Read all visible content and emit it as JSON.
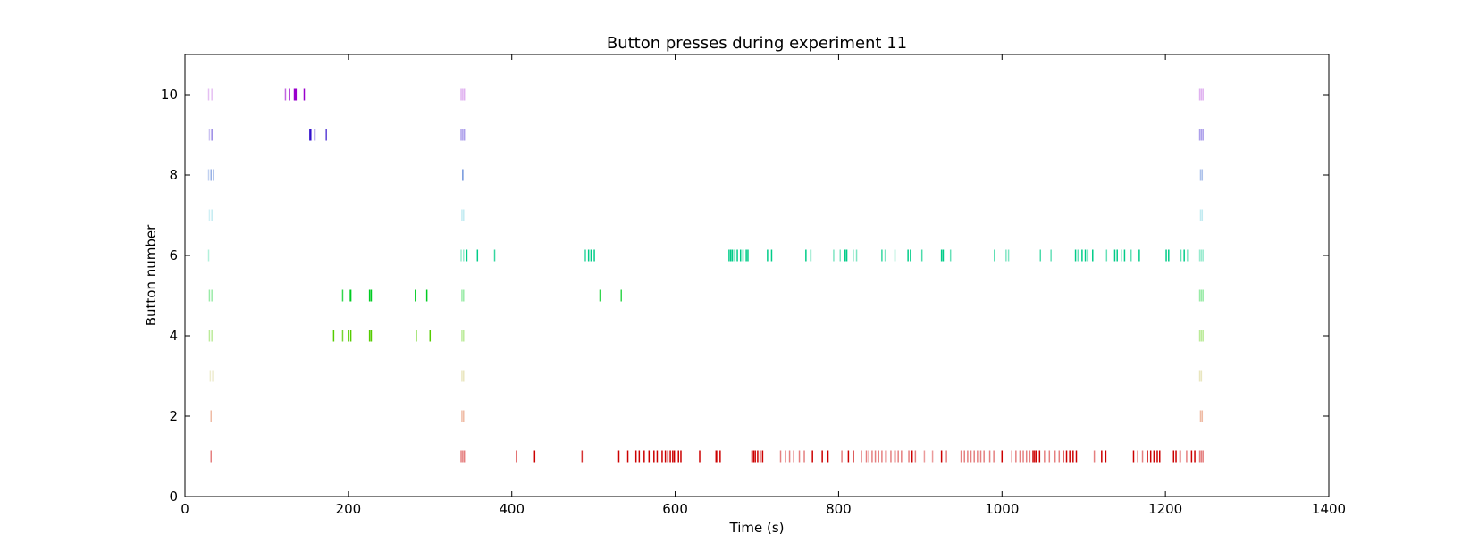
{
  "chart_data": {
    "type": "event-raster",
    "title": "Button presses during experiment 11",
    "xlabel": "Time (s)",
    "ylabel": "Button number",
    "xlim": [
      0,
      1400
    ],
    "ylim": [
      0,
      11
    ],
    "xticks": [
      0,
      200,
      400,
      600,
      800,
      1000,
      1200,
      1400
    ],
    "yticks": [
      0,
      2,
      4,
      6,
      8,
      10
    ],
    "grid": false,
    "colors": {
      "1": "#cc0000",
      "2": "#e0784a",
      "3": "#c8c060",
      "4": "#55cc00",
      "5": "#00cc22",
      "6": "#00cc88",
      "7": "#66ccdd",
      "8": "#3366cc",
      "9": "#3311cc",
      "10": "#9900cc"
    },
    "series": [
      {
        "button": 10,
        "events": [
          {
            "t": 29,
            "a": 0.25
          },
          {
            "t": 33,
            "a": 0.25
          },
          {
            "t": 123,
            "a": 0.6
          },
          {
            "t": 128,
            "a": 1
          },
          {
            "t": 134,
            "a": 1
          },
          {
            "t": 135,
            "a": 1
          },
          {
            "t": 136,
            "a": 1
          },
          {
            "t": 146,
            "a": 1
          },
          {
            "t": 338,
            "a": 0.3
          },
          {
            "t": 340,
            "a": 0.3
          },
          {
            "t": 342,
            "a": 0.3
          },
          {
            "t": 1242,
            "a": 0.3
          },
          {
            "t": 1244,
            "a": 0.3
          },
          {
            "t": 1246,
            "a": 0.3
          }
        ]
      },
      {
        "button": 9,
        "events": [
          {
            "t": 30,
            "a": 0.25
          },
          {
            "t": 33,
            "a": 0.5
          },
          {
            "t": 153,
            "a": 1
          },
          {
            "t": 154,
            "a": 1
          },
          {
            "t": 159,
            "a": 0.8
          },
          {
            "t": 173,
            "a": 0.8
          },
          {
            "t": 338,
            "a": 0.4
          },
          {
            "t": 340,
            "a": 0.4
          },
          {
            "t": 342,
            "a": 0.4
          },
          {
            "t": 1242,
            "a": 0.4
          },
          {
            "t": 1244,
            "a": 0.4
          },
          {
            "t": 1246,
            "a": 0.4
          }
        ]
      },
      {
        "button": 8,
        "events": [
          {
            "t": 29,
            "a": 0.3
          },
          {
            "t": 32,
            "a": 0.5
          },
          {
            "t": 35,
            "a": 0.5
          },
          {
            "t": 340,
            "a": 0.7
          },
          {
            "t": 1243,
            "a": 0.4
          },
          {
            "t": 1245,
            "a": 0.4
          }
        ]
      },
      {
        "button": 7,
        "events": [
          {
            "t": 30,
            "a": 0.3
          },
          {
            "t": 33,
            "a": 0.4
          },
          {
            "t": 339,
            "a": 0.4
          },
          {
            "t": 341,
            "a": 0.4
          },
          {
            "t": 1243,
            "a": 0.4
          },
          {
            "t": 1245,
            "a": 0.4
          }
        ]
      },
      {
        "button": 6,
        "events": [
          {
            "t": 29,
            "a": 0.3
          },
          {
            "t": 338,
            "a": 0.4
          },
          {
            "t": 341,
            "a": 0.4
          },
          {
            "t": 345,
            "a": 1
          },
          {
            "t": 358,
            "a": 1
          },
          {
            "t": 379,
            "a": 0.8
          },
          {
            "t": 490,
            "a": 0.8
          },
          {
            "t": 494,
            "a": 1
          },
          {
            "t": 497,
            "a": 1
          },
          {
            "t": 501,
            "a": 1
          },
          {
            "t": 666,
            "a": 1
          },
          {
            "t": 668,
            "a": 1
          },
          {
            "t": 670,
            "a": 1
          },
          {
            "t": 673,
            "a": 1
          },
          {
            "t": 676,
            "a": 1
          },
          {
            "t": 680,
            "a": 1
          },
          {
            "t": 683,
            "a": 1
          },
          {
            "t": 687,
            "a": 1
          },
          {
            "t": 689,
            "a": 1
          },
          {
            "t": 713,
            "a": 1
          },
          {
            "t": 718,
            "a": 1
          },
          {
            "t": 760,
            "a": 1
          },
          {
            "t": 766,
            "a": 0.8
          },
          {
            "t": 794,
            "a": 0.5
          },
          {
            "t": 802,
            "a": 0.5
          },
          {
            "t": 808,
            "a": 1
          },
          {
            "t": 810,
            "a": 1
          },
          {
            "t": 818,
            "a": 0.5
          },
          {
            "t": 822,
            "a": 0.5
          },
          {
            "t": 853,
            "a": 0.8
          },
          {
            "t": 857,
            "a": 0.5
          },
          {
            "t": 869,
            "a": 0.5
          },
          {
            "t": 885,
            "a": 1
          },
          {
            "t": 888,
            "a": 1
          },
          {
            "t": 902,
            "a": 0.7
          },
          {
            "t": 926,
            "a": 1
          },
          {
            "t": 928,
            "a": 1
          },
          {
            "t": 937,
            "a": 0.6
          },
          {
            "t": 991,
            "a": 0.9
          },
          {
            "t": 1005,
            "a": 0.5
          },
          {
            "t": 1008,
            "a": 0.5
          },
          {
            "t": 1047,
            "a": 0.7
          },
          {
            "t": 1060,
            "a": 0.6
          },
          {
            "t": 1090,
            "a": 1
          },
          {
            "t": 1093,
            "a": 0.6
          },
          {
            "t": 1098,
            "a": 1
          },
          {
            "t": 1102,
            "a": 1
          },
          {
            "t": 1105,
            "a": 1
          },
          {
            "t": 1111,
            "a": 1
          },
          {
            "t": 1128,
            "a": 0.6
          },
          {
            "t": 1138,
            "a": 1
          },
          {
            "t": 1141,
            "a": 1
          },
          {
            "t": 1146,
            "a": 0.6
          },
          {
            "t": 1150,
            "a": 1
          },
          {
            "t": 1158,
            "a": 0.6
          },
          {
            "t": 1168,
            "a": 1
          },
          {
            "t": 1201,
            "a": 1
          },
          {
            "t": 1204,
            "a": 1
          },
          {
            "t": 1219,
            "a": 0.6
          },
          {
            "t": 1223,
            "a": 1
          },
          {
            "t": 1227,
            "a": 0.5
          },
          {
            "t": 1242,
            "a": 0.4
          },
          {
            "t": 1244,
            "a": 0.4
          },
          {
            "t": 1246,
            "a": 0.4
          }
        ]
      },
      {
        "button": 5,
        "events": [
          {
            "t": 30,
            "a": 0.4
          },
          {
            "t": 33,
            "a": 0.4
          },
          {
            "t": 193,
            "a": 0.8
          },
          {
            "t": 201,
            "a": 1
          },
          {
            "t": 203,
            "a": 1
          },
          {
            "t": 226,
            "a": 1
          },
          {
            "t": 228,
            "a": 1
          },
          {
            "t": 282,
            "a": 1
          },
          {
            "t": 296,
            "a": 1
          },
          {
            "t": 339,
            "a": 0.4
          },
          {
            "t": 341,
            "a": 0.4
          },
          {
            "t": 508,
            "a": 0.8
          },
          {
            "t": 534,
            "a": 0.8
          },
          {
            "t": 1242,
            "a": 0.4
          },
          {
            "t": 1244,
            "a": 0.4
          },
          {
            "t": 1246,
            "a": 0.4
          }
        ]
      },
      {
        "button": 4,
        "events": [
          {
            "t": 30,
            "a": 0.4
          },
          {
            "t": 33,
            "a": 0.4
          },
          {
            "t": 182,
            "a": 1
          },
          {
            "t": 193,
            "a": 0.8
          },
          {
            "t": 200,
            "a": 1
          },
          {
            "t": 203,
            "a": 1
          },
          {
            "t": 226,
            "a": 1
          },
          {
            "t": 228,
            "a": 1
          },
          {
            "t": 283,
            "a": 1
          },
          {
            "t": 300,
            "a": 1
          },
          {
            "t": 339,
            "a": 0.4
          },
          {
            "t": 341,
            "a": 0.4
          },
          {
            "t": 1242,
            "a": 0.4
          },
          {
            "t": 1244,
            "a": 0.4
          },
          {
            "t": 1246,
            "a": 0.4
          }
        ]
      },
      {
        "button": 3,
        "events": [
          {
            "t": 31,
            "a": 0.3
          },
          {
            "t": 34,
            "a": 0.3
          },
          {
            "t": 339,
            "a": 0.4
          },
          {
            "t": 341,
            "a": 0.4
          },
          {
            "t": 1242,
            "a": 0.4
          },
          {
            "t": 1244,
            "a": 0.4
          }
        ]
      },
      {
        "button": 2,
        "events": [
          {
            "t": 32,
            "a": 0.5
          },
          {
            "t": 339,
            "a": 0.5
          },
          {
            "t": 341,
            "a": 0.5
          },
          {
            "t": 1243,
            "a": 0.5
          },
          {
            "t": 1245,
            "a": 0.5
          }
        ]
      },
      {
        "button": 1,
        "events": [
          {
            "t": 32,
            "a": 0.5
          },
          {
            "t": 338,
            "a": 0.5
          },
          {
            "t": 340,
            "a": 0.5
          },
          {
            "t": 342,
            "a": 0.5
          },
          {
            "t": 406,
            "a": 1
          },
          {
            "t": 428,
            "a": 1
          },
          {
            "t": 486,
            "a": 0.8
          },
          {
            "t": 531,
            "a": 1
          },
          {
            "t": 542,
            "a": 1
          },
          {
            "t": 552,
            "a": 1
          },
          {
            "t": 556,
            "a": 1
          },
          {
            "t": 562,
            "a": 1
          },
          {
            "t": 568,
            "a": 1
          },
          {
            "t": 574,
            "a": 1
          },
          {
            "t": 578,
            "a": 1
          },
          {
            "t": 584,
            "a": 1
          },
          {
            "t": 588,
            "a": 1
          },
          {
            "t": 591,
            "a": 1
          },
          {
            "t": 594,
            "a": 1
          },
          {
            "t": 597,
            "a": 1
          },
          {
            "t": 599,
            "a": 1
          },
          {
            "t": 604,
            "a": 1
          },
          {
            "t": 607,
            "a": 1
          },
          {
            "t": 630,
            "a": 1
          },
          {
            "t": 650,
            "a": 1
          },
          {
            "t": 652,
            "a": 1
          },
          {
            "t": 655,
            "a": 1
          },
          {
            "t": 694,
            "a": 1
          },
          {
            "t": 696,
            "a": 1
          },
          {
            "t": 698,
            "a": 1
          },
          {
            "t": 701,
            "a": 1
          },
          {
            "t": 704,
            "a": 1
          },
          {
            "t": 707,
            "a": 1
          },
          {
            "t": 729,
            "a": 0.5
          },
          {
            "t": 735,
            "a": 0.5
          },
          {
            "t": 740,
            "a": 0.5
          },
          {
            "t": 745,
            "a": 0.5
          },
          {
            "t": 752,
            "a": 0.5
          },
          {
            "t": 758,
            "a": 0.5
          },
          {
            "t": 768,
            "a": 1
          },
          {
            "t": 780,
            "a": 1
          },
          {
            "t": 787,
            "a": 1
          },
          {
            "t": 804,
            "a": 0.5
          },
          {
            "t": 812,
            "a": 1
          },
          {
            "t": 818,
            "a": 1
          },
          {
            "t": 828,
            "a": 0.5
          },
          {
            "t": 834,
            "a": 0.5
          },
          {
            "t": 837,
            "a": 0.5
          },
          {
            "t": 841,
            "a": 0.5
          },
          {
            "t": 845,
            "a": 0.5
          },
          {
            "t": 849,
            "a": 0.5
          },
          {
            "t": 853,
            "a": 0.5
          },
          {
            "t": 858,
            "a": 1
          },
          {
            "t": 864,
            "a": 0.5
          },
          {
            "t": 869,
            "a": 1
          },
          {
            "t": 873,
            "a": 0.5
          },
          {
            "t": 877,
            "a": 0.5
          },
          {
            "t": 886,
            "a": 0.5
          },
          {
            "t": 890,
            "a": 1
          },
          {
            "t": 894,
            "a": 0.5
          },
          {
            "t": 905,
            "a": 0.4
          },
          {
            "t": 915,
            "a": 0.4
          },
          {
            "t": 926,
            "a": 1
          },
          {
            "t": 932,
            "a": 0.5
          },
          {
            "t": 950,
            "a": 0.5
          },
          {
            "t": 954,
            "a": 0.5
          },
          {
            "t": 958,
            "a": 0.5
          },
          {
            "t": 962,
            "a": 0.5
          },
          {
            "t": 966,
            "a": 0.5
          },
          {
            "t": 970,
            "a": 0.5
          },
          {
            "t": 974,
            "a": 0.5
          },
          {
            "t": 978,
            "a": 0.5
          },
          {
            "t": 985,
            "a": 0.5
          },
          {
            "t": 990,
            "a": 0.5
          },
          {
            "t": 1000,
            "a": 1
          },
          {
            "t": 1012,
            "a": 0.5
          },
          {
            "t": 1017,
            "a": 0.5
          },
          {
            "t": 1022,
            "a": 0.5
          },
          {
            "t": 1026,
            "a": 0.5
          },
          {
            "t": 1030,
            "a": 0.5
          },
          {
            "t": 1034,
            "a": 0.5
          },
          {
            "t": 1038,
            "a": 1
          },
          {
            "t": 1040,
            "a": 1
          },
          {
            "t": 1042,
            "a": 1
          },
          {
            "t": 1046,
            "a": 1
          },
          {
            "t": 1052,
            "a": 0.5
          },
          {
            "t": 1058,
            "a": 0.5
          },
          {
            "t": 1065,
            "a": 0.5
          },
          {
            "t": 1070,
            "a": 0.5
          },
          {
            "t": 1075,
            "a": 1
          },
          {
            "t": 1079,
            "a": 1
          },
          {
            "t": 1083,
            "a": 1
          },
          {
            "t": 1087,
            "a": 1
          },
          {
            "t": 1091,
            "a": 1
          },
          {
            "t": 1113,
            "a": 0.5
          },
          {
            "t": 1122,
            "a": 1
          },
          {
            "t": 1127,
            "a": 1
          },
          {
            "t": 1161,
            "a": 1
          },
          {
            "t": 1166,
            "a": 0.5
          },
          {
            "t": 1172,
            "a": 0.5
          },
          {
            "t": 1178,
            "a": 1
          },
          {
            "t": 1182,
            "a": 1
          },
          {
            "t": 1186,
            "a": 1
          },
          {
            "t": 1190,
            "a": 1
          },
          {
            "t": 1193,
            "a": 1
          },
          {
            "t": 1210,
            "a": 1
          },
          {
            "t": 1213,
            "a": 1
          },
          {
            "t": 1218,
            "a": 1
          },
          {
            "t": 1226,
            "a": 0.5
          },
          {
            "t": 1232,
            "a": 1
          },
          {
            "t": 1236,
            "a": 1
          },
          {
            "t": 1242,
            "a": 0.5
          },
          {
            "t": 1244,
            "a": 0.5
          },
          {
            "t": 1246,
            "a": 0.5
          }
        ]
      }
    ]
  }
}
